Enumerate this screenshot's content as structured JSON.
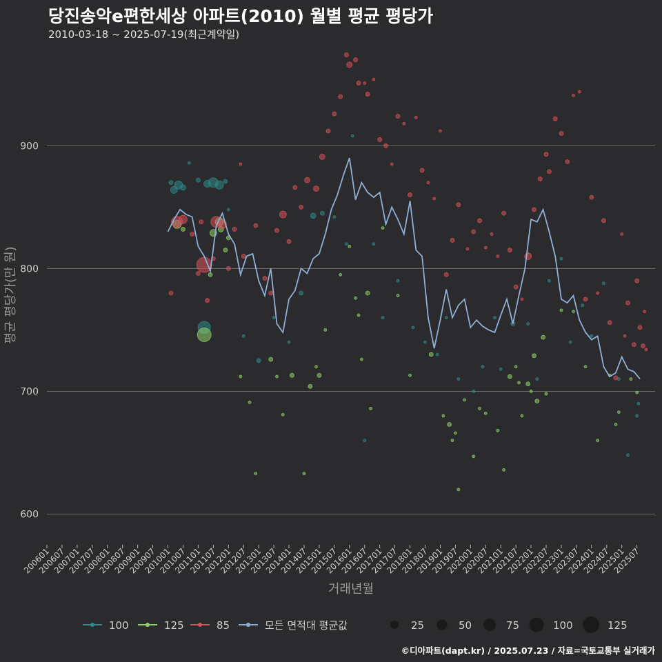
{
  "header": {
    "title": "당진송악e편한세상 아파트(2010) 월별 평균 평당가",
    "subtitle": "2010-03-18 ~ 2025-07-19(최근계약일)"
  },
  "footer": {
    "credit": "©디아파트(dapt.kr) / 2025.07.23 / 자료=국토교통부 실거래가"
  },
  "colors": {
    "background": "#2b2b2d",
    "grid": "#6e6e6e",
    "s100": "#2e8b8b",
    "s125": "#8fd16a",
    "s85": "#d9505a",
    "avg": "#8fb0d8"
  },
  "chart_data": {
    "type": "scatter",
    "title": "당진송악e편한세상 아파트(2010) 월별 평균 평당가",
    "xlabel": "거래년월",
    "ylabel": "평균 평당가(만 원)",
    "ylim": [
      575,
      985
    ],
    "y_ticks": [
      600,
      700,
      800,
      900
    ],
    "x_ticks": [
      "200601",
      "200607",
      "200701",
      "200707",
      "200801",
      "200807",
      "200901",
      "200907",
      "201001",
      "201007",
      "201101",
      "201107",
      "201201",
      "201207",
      "201301",
      "201307",
      "201401",
      "201407",
      "201501",
      "201507",
      "201601",
      "201607",
      "201701",
      "201707",
      "201801",
      "201807",
      "201901",
      "201907",
      "202001",
      "202007",
      "202101",
      "202107",
      "202201",
      "202207",
      "202301",
      "202307",
      "202401",
      "202407",
      "202501",
      "202507"
    ],
    "legend": {
      "series": [
        {
          "label": "100",
          "color": "#2e8b8b"
        },
        {
          "label": "125",
          "color": "#8fd16a"
        },
        {
          "label": "85",
          "color": "#d9505a"
        },
        {
          "label": "모든 면적대 평균값",
          "color": "#8fb0d8"
        }
      ],
      "sizes": [
        "25",
        "50",
        "75",
        "100",
        "125"
      ]
    },
    "series": [
      {
        "name": "100",
        "points": [
          [
            2010.1,
            870,
            3
          ],
          [
            2010.2,
            864,
            5
          ],
          [
            2010.35,
            868,
            6
          ],
          [
            2010.5,
            866,
            4
          ],
          [
            2010.7,
            886,
            2
          ],
          [
            2011.0,
            872,
            3
          ],
          [
            2011.3,
            869,
            5
          ],
          [
            2011.5,
            870,
            7
          ],
          [
            2011.7,
            868,
            6
          ],
          [
            2011.9,
            871,
            3
          ],
          [
            2012.0,
            848,
            2
          ],
          [
            2011.2,
            752,
            9
          ],
          [
            2012.5,
            745,
            2
          ],
          [
            2013.0,
            725,
            3
          ],
          [
            2013.5,
            760,
            2
          ],
          [
            2014.0,
            740,
            2
          ],
          [
            2014.4,
            780,
            3
          ],
          [
            2014.8,
            843,
            4
          ],
          [
            2015.1,
            845,
            3
          ],
          [
            2015.5,
            842,
            2
          ],
          [
            2015.9,
            820,
            2
          ],
          [
            2016.1,
            908,
            2
          ],
          [
            2016.5,
            660,
            2
          ],
          [
            2016.8,
            820,
            2
          ],
          [
            2017.1,
            760,
            2
          ],
          [
            2017.6,
            790,
            2
          ],
          [
            2018.1,
            752,
            2
          ],
          [
            2018.5,
            740,
            2
          ],
          [
            2018.9,
            730,
            2
          ],
          [
            2019.2,
            760,
            2
          ],
          [
            2019.6,
            710,
            2
          ],
          [
            2020.1,
            700,
            2
          ],
          [
            2020.4,
            720,
            2
          ],
          [
            2020.8,
            760,
            2
          ],
          [
            2021.0,
            718,
            2
          ],
          [
            2021.4,
            755,
            3
          ],
          [
            2021.9,
            755,
            2
          ],
          [
            2022.2,
            710,
            2
          ],
          [
            2022.6,
            790,
            2
          ],
          [
            2023.0,
            808,
            2
          ],
          [
            2023.3,
            740,
            2
          ],
          [
            2023.7,
            770,
            2
          ],
          [
            2024.0,
            745,
            2
          ],
          [
            2024.4,
            788,
            2
          ],
          [
            2024.9,
            710,
            2
          ],
          [
            2025.2,
            648,
            2
          ],
          [
            2025.5,
            680,
            2
          ],
          [
            2025.55,
            690,
            2
          ]
        ]
      },
      {
        "name": "125",
        "points": [
          [
            2010.3,
            836,
            6
          ],
          [
            2010.5,
            832,
            3
          ],
          [
            2011.2,
            746,
            10
          ],
          [
            2011.4,
            795,
            3
          ],
          [
            2011.5,
            829,
            5
          ],
          [
            2011.7,
            838,
            6
          ],
          [
            2011.75,
            832,
            4
          ],
          [
            2011.9,
            815,
            3
          ],
          [
            2012.0,
            825,
            3
          ],
          [
            2012.4,
            712,
            2
          ],
          [
            2012.7,
            691,
            2
          ],
          [
            2012.9,
            633,
            2
          ],
          [
            2013.4,
            726,
            3
          ],
          [
            2013.6,
            712,
            2
          ],
          [
            2013.8,
            681,
            2
          ],
          [
            2014.1,
            713,
            3
          ],
          [
            2014.5,
            633,
            2
          ],
          [
            2014.7,
            704,
            3
          ],
          [
            2014.9,
            720,
            2
          ],
          [
            2015.0,
            713,
            3
          ],
          [
            2015.2,
            750,
            2
          ],
          [
            2015.7,
            795,
            2
          ],
          [
            2016.0,
            818,
            2
          ],
          [
            2016.2,
            776,
            2
          ],
          [
            2016.3,
            762,
            2
          ],
          [
            2016.4,
            726,
            2
          ],
          [
            2016.6,
            780,
            3
          ],
          [
            2016.7,
            686,
            2
          ],
          [
            2017.1,
            833,
            2
          ],
          [
            2017.6,
            778,
            2
          ],
          [
            2018.0,
            713,
            2
          ],
          [
            2018.7,
            730,
            3
          ],
          [
            2019.1,
            680,
            2
          ],
          [
            2019.3,
            673,
            3
          ],
          [
            2019.4,
            660,
            2
          ],
          [
            2019.5,
            666,
            2
          ],
          [
            2019.6,
            620,
            2
          ],
          [
            2019.8,
            693,
            2
          ],
          [
            2020.1,
            647,
            2
          ],
          [
            2020.3,
            686,
            2
          ],
          [
            2020.5,
            682,
            2
          ],
          [
            2020.9,
            668,
            2
          ],
          [
            2021.1,
            636,
            2
          ],
          [
            2021.3,
            712,
            3
          ],
          [
            2021.5,
            720,
            2
          ],
          [
            2021.6,
            707,
            2
          ],
          [
            2021.7,
            680,
            2
          ],
          [
            2021.9,
            706,
            3
          ],
          [
            2022.0,
            700,
            2
          ],
          [
            2022.1,
            729,
            3
          ],
          [
            2022.2,
            692,
            3
          ],
          [
            2022.4,
            744,
            3
          ],
          [
            2022.5,
            698,
            2
          ],
          [
            2023.0,
            766,
            2
          ],
          [
            2023.4,
            765,
            2
          ],
          [
            2023.8,
            720,
            2
          ],
          [
            2024.2,
            660,
            2
          ],
          [
            2024.6,
            713,
            2
          ],
          [
            2024.8,
            673,
            2
          ],
          [
            2024.9,
            683,
            2
          ],
          [
            2025.3,
            710,
            2
          ],
          [
            2025.5,
            699,
            2
          ]
        ]
      },
      {
        "name": "85",
        "points": [
          [
            2010.1,
            780,
            3
          ],
          [
            2010.3,
            838,
            8
          ],
          [
            2010.5,
            840,
            6
          ],
          [
            2010.8,
            828,
            3
          ],
          [
            2011.0,
            796,
            3
          ],
          [
            2011.1,
            838,
            3
          ],
          [
            2011.2,
            803,
            11
          ],
          [
            2011.3,
            774,
            3
          ],
          [
            2011.5,
            808,
            3
          ],
          [
            2011.6,
            838,
            8
          ],
          [
            2011.8,
            836,
            6
          ],
          [
            2012.0,
            800,
            3
          ],
          [
            2012.2,
            832,
            3
          ],
          [
            2012.4,
            885,
            2
          ],
          [
            2012.5,
            810,
            3
          ],
          [
            2012.9,
            835,
            3
          ],
          [
            2013.2,
            792,
            3
          ],
          [
            2013.4,
            780,
            3
          ],
          [
            2013.6,
            831,
            3
          ],
          [
            2013.8,
            844,
            5
          ],
          [
            2014.0,
            822,
            3
          ],
          [
            2014.2,
            866,
            3
          ],
          [
            2014.4,
            850,
            3
          ],
          [
            2014.6,
            872,
            4
          ],
          [
            2014.9,
            865,
            4
          ],
          [
            2015.1,
            891,
            4
          ],
          [
            2015.3,
            912,
            3
          ],
          [
            2015.5,
            926,
            3
          ],
          [
            2015.7,
            940,
            3
          ],
          [
            2015.9,
            974,
            3
          ],
          [
            2016.0,
            966,
            4
          ],
          [
            2016.2,
            970,
            3
          ],
          [
            2016.3,
            951,
            3
          ],
          [
            2016.5,
            951,
            2
          ],
          [
            2016.6,
            942,
            3
          ],
          [
            2016.8,
            954,
            2
          ],
          [
            2017.0,
            905,
            3
          ],
          [
            2017.2,
            900,
            3
          ],
          [
            2017.4,
            885,
            2
          ],
          [
            2017.6,
            924,
            3
          ],
          [
            2017.8,
            918,
            2
          ],
          [
            2018.0,
            860,
            3
          ],
          [
            2018.2,
            923,
            2
          ],
          [
            2018.4,
            880,
            3
          ],
          [
            2018.6,
            870,
            2
          ],
          [
            2018.8,
            857,
            2
          ],
          [
            2019.0,
            912,
            2
          ],
          [
            2019.2,
            795,
            3
          ],
          [
            2019.4,
            823,
            3
          ],
          [
            2019.6,
            852,
            3
          ],
          [
            2019.9,
            816,
            2
          ],
          [
            2020.1,
            830,
            3
          ],
          [
            2020.3,
            839,
            3
          ],
          [
            2020.5,
            817,
            2
          ],
          [
            2020.7,
            828,
            2
          ],
          [
            2020.9,
            810,
            2
          ],
          [
            2021.1,
            845,
            3
          ],
          [
            2021.3,
            815,
            3
          ],
          [
            2021.5,
            785,
            3
          ],
          [
            2021.7,
            775,
            2
          ],
          [
            2021.9,
            810,
            5
          ],
          [
            2022.1,
            848,
            3
          ],
          [
            2022.3,
            873,
            3
          ],
          [
            2022.5,
            893,
            3
          ],
          [
            2022.6,
            879,
            3
          ],
          [
            2022.8,
            922,
            3
          ],
          [
            2023.0,
            910,
            3
          ],
          [
            2023.2,
            887,
            3
          ],
          [
            2023.4,
            941,
            2
          ],
          [
            2023.6,
            944,
            2
          ],
          [
            2023.8,
            775,
            3
          ],
          [
            2024.0,
            858,
            3
          ],
          [
            2024.2,
            780,
            2
          ],
          [
            2024.4,
            839,
            3
          ],
          [
            2024.6,
            756,
            3
          ],
          [
            2024.8,
            711,
            3
          ],
          [
            2025.0,
            828,
            2
          ],
          [
            2025.1,
            745,
            2
          ],
          [
            2025.2,
            772,
            3
          ],
          [
            2025.4,
            738,
            3
          ],
          [
            2025.5,
            790,
            3
          ],
          [
            2025.6,
            752,
            3
          ],
          [
            2025.7,
            737,
            3
          ],
          [
            2025.75,
            765,
            2
          ],
          [
            2025.8,
            734,
            2
          ]
        ]
      }
    ],
    "average": {
      "name": "모든 면적대 평균값",
      "x": [
        2010.0,
        2010.2,
        2010.4,
        2010.6,
        2010.8,
        2011.0,
        2011.2,
        2011.4,
        2011.6,
        2011.8,
        2012.0,
        2012.2,
        2012.4,
        2012.6,
        2012.8,
        2013.0,
        2013.2,
        2013.4,
        2013.6,
        2013.8,
        2014.0,
        2014.2,
        2014.4,
        2014.6,
        2014.8,
        2015.0,
        2015.2,
        2015.4,
        2015.6,
        2015.8,
        2016.0,
        2016.2,
        2016.4,
        2016.6,
        2016.8,
        2017.0,
        2017.2,
        2017.4,
        2017.6,
        2017.8,
        2018.0,
        2018.2,
        2018.4,
        2018.6,
        2018.8,
        2019.0,
        2019.2,
        2019.4,
        2019.6,
        2019.8,
        2020.0,
        2020.2,
        2020.4,
        2020.6,
        2020.8,
        2021.0,
        2021.2,
        2021.4,
        2021.6,
        2021.8,
        2022.0,
        2022.2,
        2022.4,
        2022.6,
        2022.8,
        2023.0,
        2023.2,
        2023.4,
        2023.6,
        2023.8,
        2024.0,
        2024.2,
        2024.4,
        2024.6,
        2024.8,
        2025.0,
        2025.2,
        2025.4,
        2025.6
      ],
      "y": [
        830,
        840,
        848,
        844,
        842,
        818,
        810,
        798,
        835,
        845,
        828,
        820,
        795,
        810,
        812,
        790,
        778,
        800,
        755,
        748,
        775,
        782,
        800,
        796,
        808,
        812,
        828,
        848,
        860,
        876,
        890,
        856,
        870,
        862,
        858,
        862,
        836,
        850,
        840,
        828,
        855,
        815,
        810,
        760,
        735,
        758,
        783,
        760,
        770,
        775,
        752,
        758,
        753,
        750,
        748,
        762,
        775,
        755,
        778,
        800,
        840,
        838,
        848,
        830,
        810,
        775,
        772,
        778,
        758,
        748,
        742,
        745,
        720,
        712,
        715,
        728,
        718,
        716,
        710
      ]
    }
  }
}
